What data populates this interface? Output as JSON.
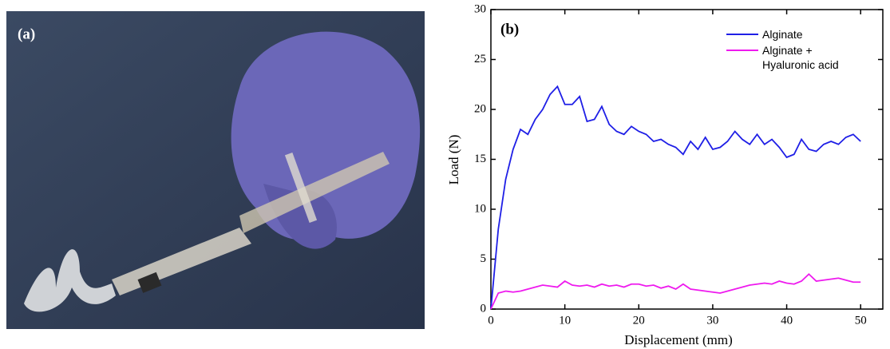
{
  "panel_a": {
    "label": "(a)"
  },
  "chart_data": {
    "type": "line",
    "panel_label": "(b)",
    "x_label": "Displacement (mm)",
    "y_label": "Load (N)",
    "x": [
      0,
      1,
      2,
      3,
      4,
      5,
      6,
      7,
      8,
      9,
      10,
      11,
      12,
      13,
      14,
      15,
      16,
      17,
      18,
      19,
      20,
      21,
      22,
      23,
      24,
      25,
      26,
      27,
      28,
      29,
      30,
      31,
      32,
      33,
      34,
      35,
      36,
      37,
      38,
      39,
      40,
      41,
      42,
      43,
      44,
      45,
      46,
      47,
      48,
      49,
      50
    ],
    "series": [
      {
        "name": "Alginate",
        "color": "#1f1fe6",
        "values": [
          0,
          8,
          13,
          16,
          18,
          17.5,
          19,
          20,
          21.5,
          22.3,
          20.5,
          20.5,
          21.3,
          18.8,
          19,
          20.3,
          18.5,
          17.8,
          17.5,
          18.3,
          17.8,
          17.5,
          16.8,
          17,
          16.5,
          16.2,
          15.5,
          16.8,
          16,
          17.2,
          16,
          16.2,
          16.8,
          17.8,
          17,
          16.5,
          17.5,
          16.5,
          17,
          16.2,
          15.2,
          15.5,
          17,
          16,
          15.8,
          16.5,
          16.8,
          16.5,
          17.2,
          17.5,
          16.8
        ]
      },
      {
        "name": "Alginate + Hyaluronic acid",
        "color": "#ee1aee",
        "values": [
          0,
          1.6,
          1.8,
          1.7,
          1.8,
          2.0,
          2.2,
          2.4,
          2.3,
          2.2,
          2.8,
          2.4,
          2.3,
          2.4,
          2.2,
          2.5,
          2.3,
          2.4,
          2.2,
          2.5,
          2.5,
          2.3,
          2.4,
          2.1,
          2.3,
          2.0,
          2.5,
          2.0,
          1.9,
          1.8,
          1.7,
          1.6,
          1.8,
          2.0,
          2.2,
          2.4,
          2.5,
          2.6,
          2.5,
          2.8,
          2.6,
          2.5,
          2.8,
          3.5,
          2.8,
          2.9,
          3.0,
          3.1,
          2.9,
          2.7,
          2.7
        ]
      }
    ],
    "xlim": [
      0,
      53
    ],
    "xticks": [
      0,
      10,
      20,
      30,
      40,
      50
    ],
    "ylim": [
      0,
      30
    ],
    "yticks": [
      0,
      5,
      10,
      15,
      20,
      25,
      30
    ],
    "legend": "upper right",
    "grid": false
  }
}
